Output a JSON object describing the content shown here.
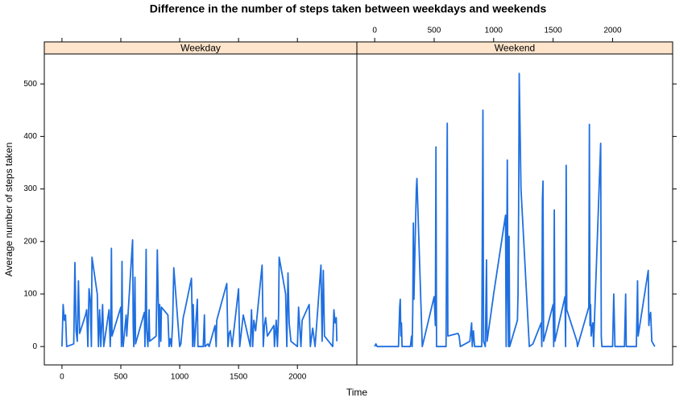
{
  "chart_data": {
    "type": "line",
    "title": "Difference in the number of steps taken between weekdays and weekends",
    "x_label": "Time",
    "y_label": "Average number of steps taken",
    "color": "#1f6fe0",
    "xlim": [
      -150,
      2505
    ],
    "ylim": [
      -35,
      557
    ],
    "xticks": [
      0,
      500,
      1000,
      1500,
      2000
    ],
    "yticks": [
      0,
      100,
      200,
      300,
      400,
      500
    ],
    "panels": [
      {
        "name": "Weekday",
        "x": [
          0,
          10,
          20,
          30,
          40,
          100,
          110,
          120,
          130,
          140,
          150,
          200,
          210,
          220,
          230,
          240,
          250,
          255,
          300,
          310,
          320,
          330,
          345,
          355,
          400,
          410,
          415,
          420,
          425,
          500,
          505,
          510,
          515,
          520,
          545,
          550,
          600,
          605,
          610,
          620,
          625,
          700,
          705,
          715,
          720,
          730,
          740,
          745,
          800,
          810,
          820,
          825,
          830,
          840,
          845,
          900,
          910,
          920,
          930,
          940,
          950,
          1000,
          1010,
          1030,
          1045,
          1100,
          1110,
          1115,
          1125,
          1150,
          1155,
          1200,
          1210,
          1215,
          1240,
          1250,
          1300,
          1310,
          1315,
          1400,
          1410,
          1420,
          1430,
          1445,
          1500,
          1510,
          1540,
          1600,
          1610,
          1620,
          1630,
          1645,
          1700,
          1710,
          1720,
          1730,
          1745,
          1800,
          1805,
          1820,
          1830,
          1840,
          1845,
          1900,
          1910,
          1920,
          1930,
          1945,
          2000,
          2010,
          2030,
          2040,
          2100,
          2110,
          2130,
          2150,
          2200,
          2210,
          2220,
          2230,
          2300,
          2310,
          2320,
          2330,
          2335
        ],
        "values": [
          0,
          80,
          50,
          60,
          0,
          5,
          160,
          30,
          10,
          125,
          25,
          60,
          70,
          0,
          110,
          90,
          0,
          170,
          100,
          0,
          70,
          0,
          80,
          0,
          70,
          0,
          40,
          187,
          20,
          75,
          0,
          162,
          15,
          0,
          60,
          20,
          203,
          40,
          0,
          132,
          5,
          65,
          0,
          185,
          30,
          0,
          70,
          10,
          20,
          184,
          60,
          0,
          80,
          10,
          75,
          60,
          0,
          15,
          0,
          45,
          150,
          0,
          5,
          55,
          70,
          130,
          0,
          80,
          0,
          90,
          0,
          0,
          60,
          0,
          5,
          0,
          40,
          0,
          50,
          120,
          0,
          25,
          30,
          0,
          110,
          0,
          60,
          0,
          70,
          0,
          50,
          30,
          155,
          0,
          40,
          55,
          20,
          40,
          0,
          50,
          0,
          60,
          170,
          100,
          0,
          140,
          45,
          10,
          0,
          75,
          0,
          50,
          80,
          0,
          35,
          0,
          155,
          10,
          145,
          20,
          0,
          70,
          45,
          55,
          10
        ]
      },
      {
        "name": "Weekend",
        "x": [
          0,
          10,
          20,
          200,
          210,
          215,
          220,
          225,
          230,
          300,
          310,
          315,
          320,
          325,
          330,
          340,
          350,
          355,
          400,
          500,
          510,
          515,
          520,
          600,
          610,
          615,
          700,
          710,
          720,
          800,
          815,
          820,
          830,
          840,
          900,
          910,
          915,
          930,
          940,
          945,
          1000,
          1100,
          1105,
          1115,
          1120,
          1125,
          1130,
          1135,
          1200,
          1205,
          1210,
          1215,
          1230,
          1300,
          1330,
          1400,
          1405,
          1410,
          1415,
          1420,
          1500,
          1505,
          1510,
          1515,
          1600,
          1605,
          1610,
          1615,
          1700,
          1705,
          1800,
          1805,
          1810,
          1815,
          1820,
          1830,
          1835,
          1840,
          1900,
          1905,
          1910,
          2000,
          2010,
          2020,
          2100,
          2110,
          2115,
          2200,
          2210,
          2215,
          2300,
          2305,
          2310,
          2320,
          2330,
          2355
        ],
        "values": [
          0,
          5,
          0,
          0,
          75,
          90,
          20,
          45,
          0,
          0,
          20,
          0,
          70,
          235,
          90,
          200,
          300,
          320,
          0,
          95,
          40,
          380,
          0,
          0,
          425,
          20,
          25,
          20,
          0,
          10,
          45,
          0,
          30,
          0,
          0,
          450,
          10,
          0,
          165,
          10,
          100,
          250,
          0,
          355,
          100,
          0,
          210,
          0,
          50,
          100,
          260,
          520,
          300,
          0,
          5,
          45,
          0,
          280,
          315,
          10,
          80,
          0,
          260,
          10,
          95,
          0,
          345,
          70,
          10,
          0,
          75,
          423,
          40,
          80,
          20,
          40,
          45,
          0,
          387,
          20,
          0,
          0,
          100,
          0,
          0,
          100,
          0,
          0,
          125,
          20,
          145,
          40,
          55,
          65,
          10,
          0
        ]
      }
    ]
  }
}
